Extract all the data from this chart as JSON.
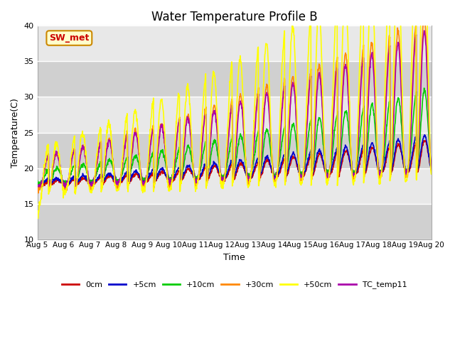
{
  "title": "Water Temperature Profile B",
  "xlabel": "Time",
  "ylabel": "Temperature(C)",
  "ylim": [
    10,
    40
  ],
  "xlim": [
    0,
    15
  ],
  "x_tick_labels": [
    "Aug 5",
    "Aug 6",
    "Aug 7",
    "Aug 8",
    "Aug 9",
    "Aug 10",
    "Aug 11",
    "Aug 12",
    "Aug 13",
    "Aug 14",
    "Aug 15",
    "Aug 16",
    "Aug 17",
    "Aug 18",
    "Aug 19",
    "Aug 20"
  ],
  "colors": {
    "0cm": "#cc0000",
    "+5cm": "#0000cc",
    "+10cm": "#00cc00",
    "+30cm": "#ff8800",
    "+50cm": "#ffff00",
    "TC_temp11": "#aa00aa"
  },
  "legend_labels": [
    "0cm",
    "+5cm",
    "+10cm",
    "+30cm",
    "+50cm",
    "TC_temp11"
  ],
  "bg_light": "#e8e8e8",
  "bg_dark": "#d0d0d0",
  "annotation_text": "SW_met",
  "annotation_color": "#cc0000",
  "annotation_bg": "#ffffcc",
  "annotation_border": "#cc8800",
  "title_fontsize": 12,
  "axis_fontsize": 9,
  "band_yticks": [
    10,
    15,
    20,
    25,
    30,
    35,
    40
  ]
}
